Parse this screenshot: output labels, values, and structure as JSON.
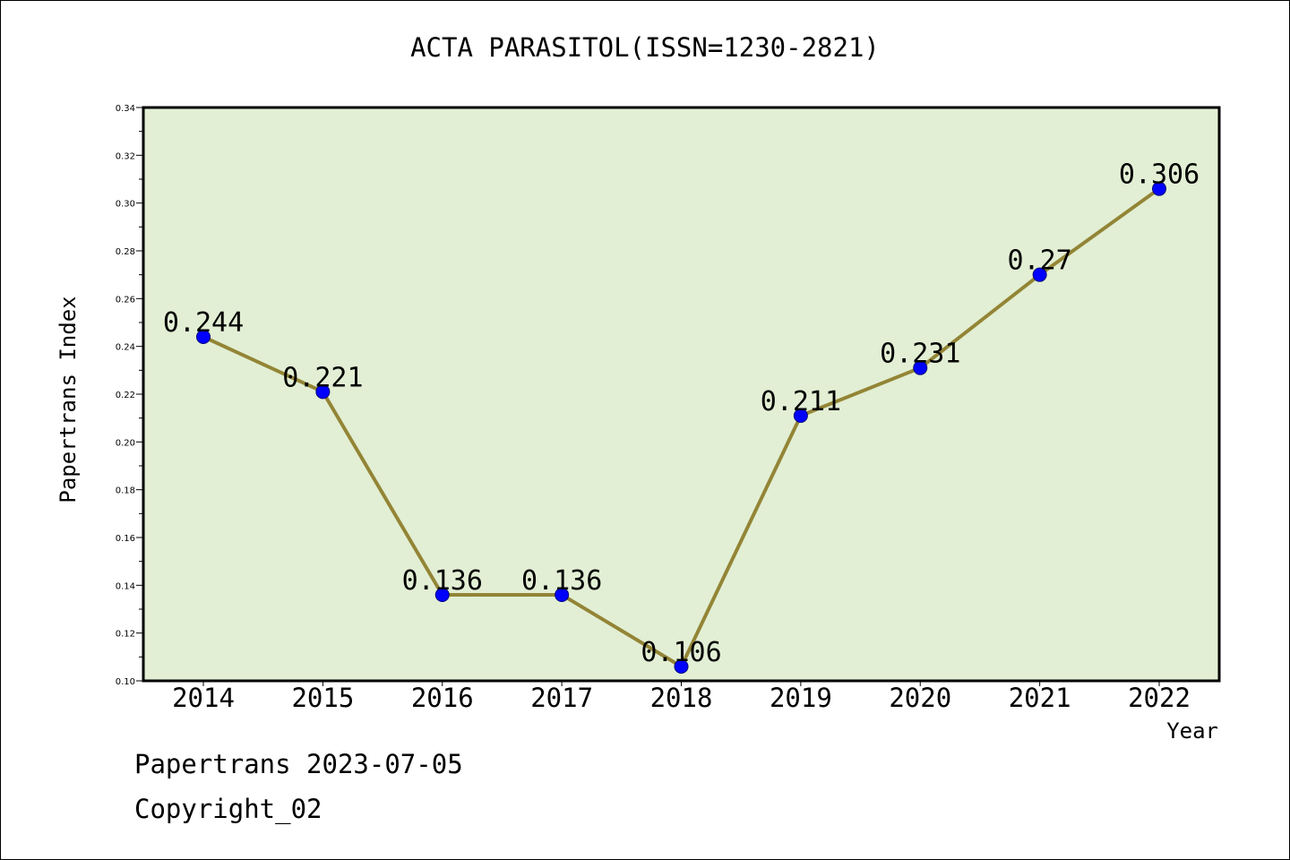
{
  "chart_data": {
    "type": "line",
    "title": "ACTA PARASITOL(ISSN=1230-2821)",
    "xlabel": "Year",
    "ylabel": "Papertrans Index",
    "x": [
      "2014",
      "2015",
      "2016",
      "2017",
      "2018",
      "2019",
      "2020",
      "2021",
      "2022"
    ],
    "series": [
      {
        "values": [
          0.244,
          0.221,
          0.136,
          0.136,
          0.106,
          0.211,
          0.231,
          0.27,
          0.306
        ]
      }
    ],
    "data_labels": [
      "0.244",
      "0.221",
      "0.136",
      "0.136",
      "0.106",
      "0.211",
      "0.231",
      "0.27",
      "0.306"
    ],
    "ylim": [
      0.1,
      0.34
    ],
    "yticks": [
      "0.10",
      "0.12",
      "0.14",
      "0.16",
      "0.18",
      "0.20",
      "0.22",
      "0.24",
      "0.26",
      "0.28",
      "0.30",
      "0.32",
      "0.34"
    ],
    "grid": false,
    "colors": {
      "plot_background": "#e2efd4",
      "line": "#938536",
      "marker": "#0000ff"
    }
  },
  "footer": {
    "date_text": "Papertrans 2023-07-05",
    "copyright_text": "Copyright_02"
  }
}
